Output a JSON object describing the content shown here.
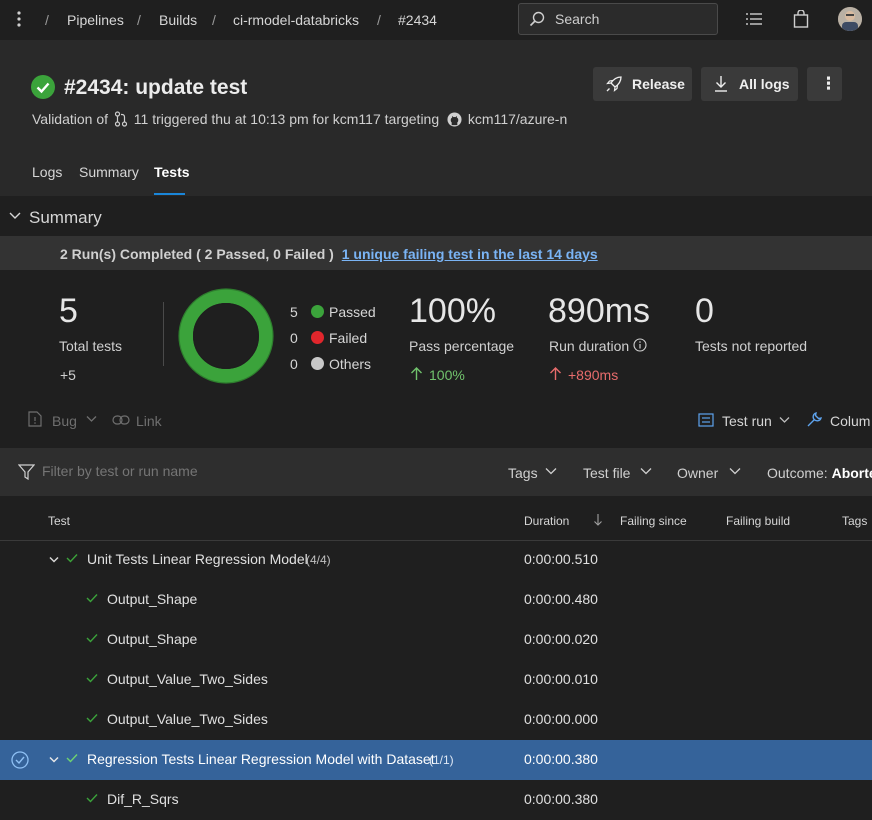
{
  "topbar": {
    "breadcrumbs": [
      "Pipelines",
      "Builds",
      "ci-rmodel-databricks",
      "#2434"
    ],
    "separator": "/",
    "search_label": "Search"
  },
  "header": {
    "title": "#2434: update test",
    "subtitle_prefix": "Validation of",
    "subtitle_pr": "11 triggered thu at 10:13 pm for kcm117 targeting",
    "subtitle_repo": "kcm117/azure-n",
    "release_label": "Release",
    "all_logs_label": "All logs",
    "more_label": "⋮"
  },
  "tabs": [
    {
      "label": "Logs",
      "active": false
    },
    {
      "label": "Summary",
      "active": false
    },
    {
      "label": "Tests",
      "active": true
    }
  ],
  "summary": {
    "section_title": "Summary",
    "banner_text": "2 Run(s) Completed ( 2 Passed, 0 Failed )",
    "banner_link": "1 unique failing test in the last 14 days",
    "total_tests": "5",
    "total_tests_label": "Total tests",
    "total_tests_delta": "+5",
    "legend": [
      {
        "count": "5",
        "label": "Passed",
        "color": "#3ba33b"
      },
      {
        "count": "0",
        "label": "Failed",
        "color": "#e0262c"
      },
      {
        "count": "0",
        "label": "Others",
        "color": "#c8c8c8"
      }
    ],
    "pass_percentage": "100%",
    "pass_percentage_label": "Pass percentage",
    "pass_percentage_delta": "100%",
    "run_duration": "890ms",
    "run_duration_label": "Run duration",
    "run_duration_delta": "+890ms",
    "not_reported": "0",
    "not_reported_label": "Tests not reported"
  },
  "toolbar": {
    "bug_label": "Bug",
    "link_label": "Link",
    "test_run_label": "Test run",
    "columns_label": "Colum"
  },
  "filter": {
    "placeholder": "Filter by test or run name",
    "tags_label": "Tags",
    "test_file_label": "Test file",
    "owner_label": "Owner",
    "outcome_label": "Outcome:",
    "outcome_value": "Aborte"
  },
  "table": {
    "headers": {
      "test": "Test",
      "duration": "Duration",
      "failing_since": "Failing since",
      "failing_build": "Failing build",
      "tags": "Tags"
    },
    "rows": [
      {
        "name": "Unit Tests Linear Regression Model",
        "count": "(4/4)",
        "duration": "0:00:00.510",
        "group": true,
        "selected": false
      },
      {
        "name": "Output_Shape",
        "count": "",
        "duration": "0:00:00.480",
        "group": false,
        "selected": false
      },
      {
        "name": "Output_Shape",
        "count": "",
        "duration": "0:00:00.020",
        "group": false,
        "selected": false
      },
      {
        "name": "Output_Value_Two_Sides",
        "count": "",
        "duration": "0:00:00.010",
        "group": false,
        "selected": false
      },
      {
        "name": "Output_Value_Two_Sides",
        "count": "",
        "duration": "0:00:00.000",
        "group": false,
        "selected": false
      },
      {
        "name": "Regression Tests Linear Regression Model with Dataset",
        "count": "(1/1)",
        "duration": "0:00:00.380",
        "group": true,
        "selected": true
      },
      {
        "name": "Dif_R_Sqrs",
        "count": "",
        "duration": "0:00:00.380",
        "group": false,
        "selected": false
      }
    ]
  },
  "colors": {
    "accent": "#1a86d9",
    "success": "#3ba33b",
    "selected_row": "#35639a"
  }
}
